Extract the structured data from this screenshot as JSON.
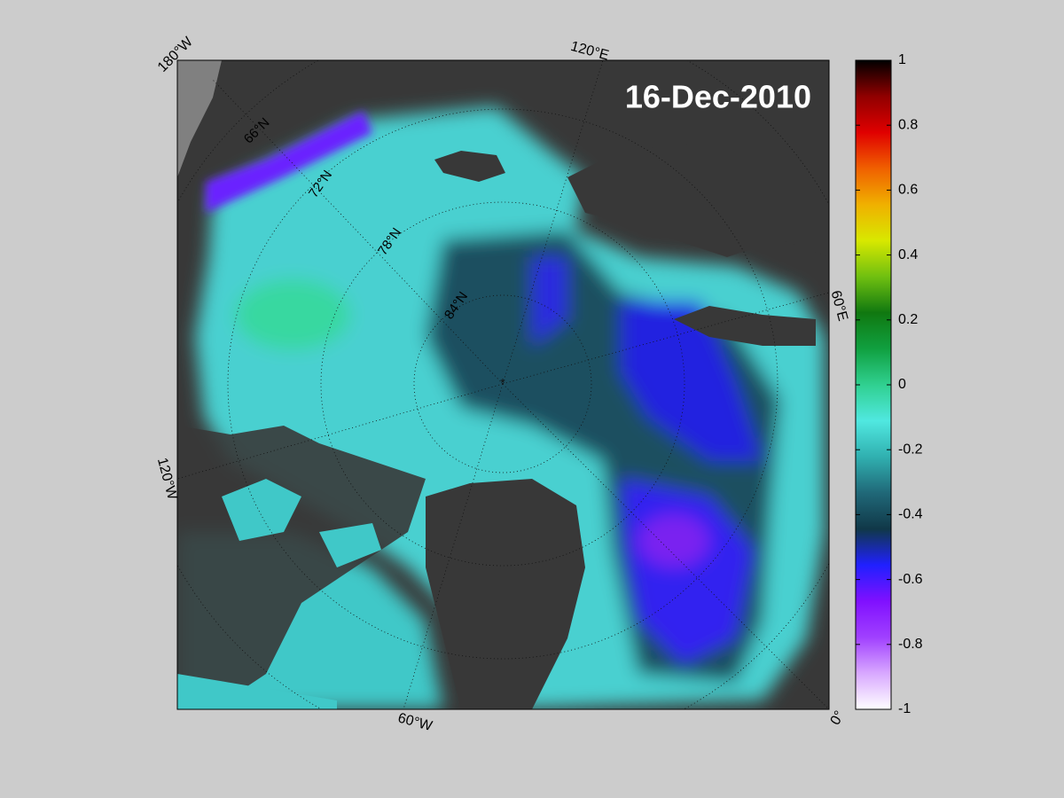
{
  "title": "16-Dec-2010",
  "longitude_labels": [
    "180°W",
    "120°E",
    "60°E",
    "0°",
    "60°W",
    "120°W"
  ],
  "latitude_labels": [
    "66°N",
    "72°N",
    "78°N",
    "84°N"
  ],
  "colorbar": {
    "lim": [
      -1,
      1
    ],
    "ticks": [
      1,
      0.8,
      0.6,
      0.4,
      0.2,
      0,
      -0.2,
      -0.4,
      -0.6,
      -0.8,
      -1
    ],
    "colors": [
      "#ffffff",
      "#d8a8ff",
      "#a040ff",
      "#8010ff",
      "#2020ff",
      "#103848",
      "#206878",
      "#30b0b0",
      "#50e8e0",
      "#30d090",
      "#10a040",
      "#107810",
      "#70c010",
      "#d8e800",
      "#f0b000",
      "#f06000",
      "#e00000",
      "#900000",
      "#000000"
    ]
  }
}
